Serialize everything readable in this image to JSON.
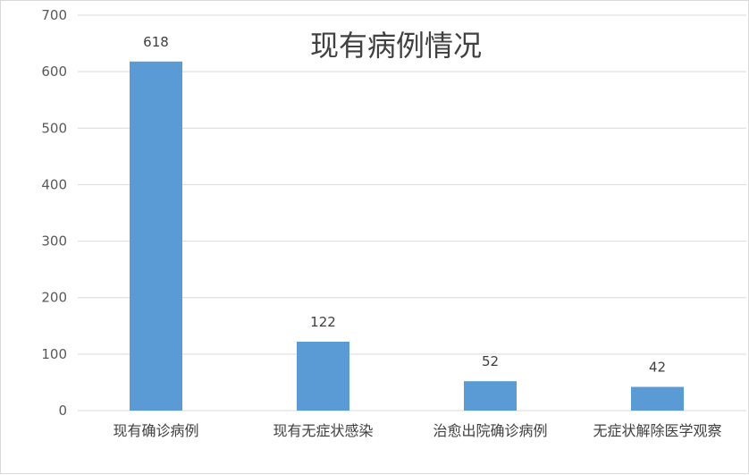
{
  "chart_data": {
    "type": "bar",
    "title": "现有病例情况",
    "categories": [
      "现有确诊病例",
      "现有无症状感染",
      "治愈出院确诊病例",
      "无症状解除医学观察"
    ],
    "values": [
      618,
      122,
      52,
      42
    ],
    "data_labels": [
      "618",
      "122",
      "52",
      "42"
    ],
    "yticks": [
      "0",
      "100",
      "200",
      "300",
      "400",
      "500",
      "600",
      "700"
    ],
    "ylim": [
      0,
      700
    ],
    "grid": true,
    "legend": "none",
    "bar_color": "#5b9bd5",
    "grid_color": "#d9d9d9",
    "text_color": "#404040"
  }
}
